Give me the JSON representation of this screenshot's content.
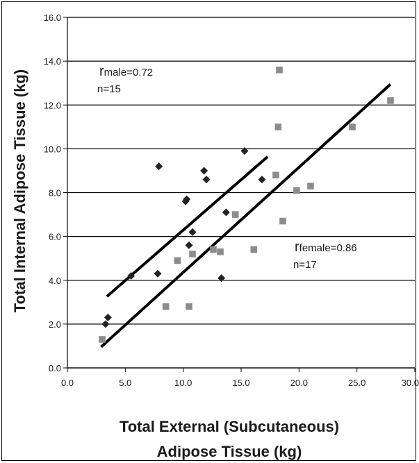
{
  "chart_data": {
    "type": "scatter",
    "title": "",
    "xlabel_line1": "Total External (Subcutaneous)",
    "xlabel_line2": "Adipose Tissue (kg)",
    "ylabel": "Total Internal Adipose Tissue (kg)",
    "xlim": [
      0,
      30
    ],
    "ylim": [
      0,
      16
    ],
    "xticks": [
      "0.0",
      "5.0",
      "10.0",
      "15.0",
      "20.0",
      "25.0",
      "30.0"
    ],
    "yticks": [
      "0.0",
      "2.0",
      "4.0",
      "6.0",
      "8.0",
      "10.0",
      "12.0",
      "14.0",
      "16.0"
    ],
    "grid": "horizontal",
    "series": [
      {
        "marker": "diamond",
        "color": "#222222",
        "points": [
          [
            3.3,
            2.0
          ],
          [
            3.5,
            2.3
          ],
          [
            5.5,
            4.2
          ],
          [
            7.8,
            4.3
          ],
          [
            7.9,
            9.2
          ],
          [
            10.2,
            7.6
          ],
          [
            10.3,
            7.7
          ],
          [
            10.5,
            5.6
          ],
          [
            10.8,
            6.2
          ],
          [
            11.8,
            9.0
          ],
          [
            12.0,
            8.6
          ],
          [
            13.3,
            4.1
          ],
          [
            13.7,
            7.1
          ],
          [
            15.3,
            9.9
          ],
          [
            16.8,
            8.6
          ]
        ],
        "trend": [
          [
            3.5,
            3.3
          ],
          [
            17.2,
            9.6
          ]
        ]
      },
      {
        "marker": "square",
        "color": "#8c8c8c",
        "points": [
          [
            3.0,
            1.3
          ],
          [
            8.5,
            2.8
          ],
          [
            9.5,
            4.9
          ],
          [
            10.5,
            2.8
          ],
          [
            10.8,
            5.2
          ],
          [
            12.6,
            5.4
          ],
          [
            13.2,
            5.3
          ],
          [
            14.5,
            7.0
          ],
          [
            16.1,
            5.4
          ],
          [
            18.0,
            8.8
          ],
          [
            18.2,
            11.0
          ],
          [
            18.3,
            13.6
          ],
          [
            18.6,
            6.7
          ],
          [
            19.8,
            8.1
          ],
          [
            21.0,
            8.3
          ],
          [
            24.6,
            11.0
          ],
          [
            27.9,
            12.2
          ]
        ],
        "trend": [
          [
            3.0,
            1.0
          ],
          [
            27.8,
            12.9
          ]
        ]
      }
    ],
    "annotations": {
      "male_r_symbol": "r",
      "male_r_text": "male=0.72",
      "male_n": "n=15",
      "female_r_symbol": "r",
      "female_r_text": "female=0.86",
      "female_n": "n=17"
    }
  }
}
